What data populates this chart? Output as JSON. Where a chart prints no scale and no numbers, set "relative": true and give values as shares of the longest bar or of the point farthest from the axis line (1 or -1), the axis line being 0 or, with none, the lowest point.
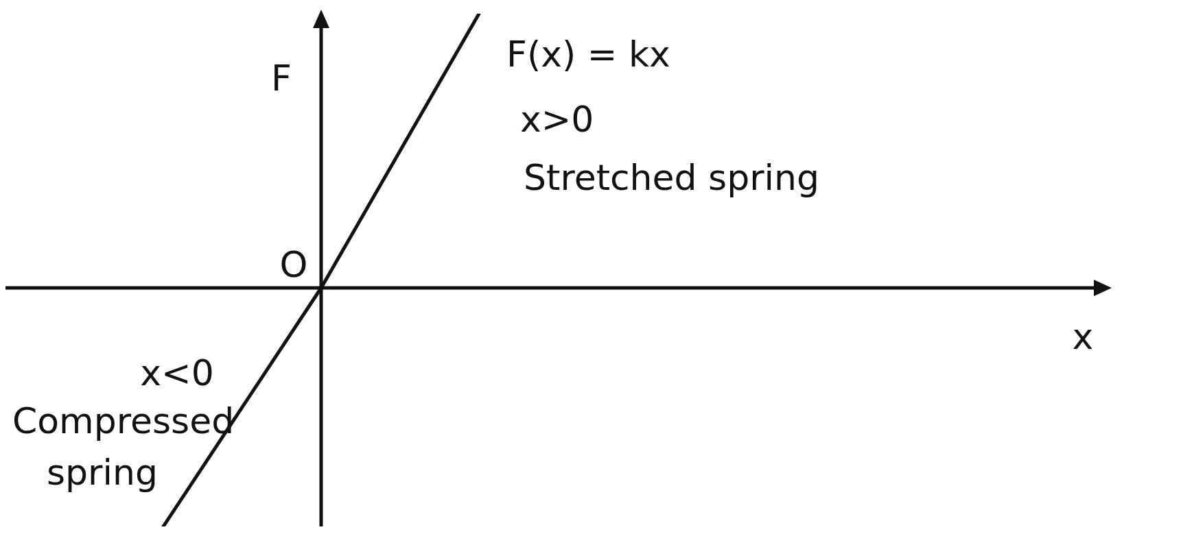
{
  "chart_data": {
    "type": "line",
    "relative": true,
    "xlabel": "x",
    "ylabel": "F",
    "categories": [
      null,
      null,
      null,
      null,
      null,
      null,
      null,
      null
    ],
    "series": [
      {
        "color": "#111111",
        "values": [
          null,
          -0.87,
          0,
          1,
          null,
          null,
          null,
          null
        ]
      }
    ],
    "annotations": [
      "F(x) = kx",
      "x>0",
      "Stretched spring",
      "x<0",
      "Compressed",
      "spring",
      "O"
    ],
    "marker": "none",
    "line_style": "solid",
    "legend": false
  }
}
